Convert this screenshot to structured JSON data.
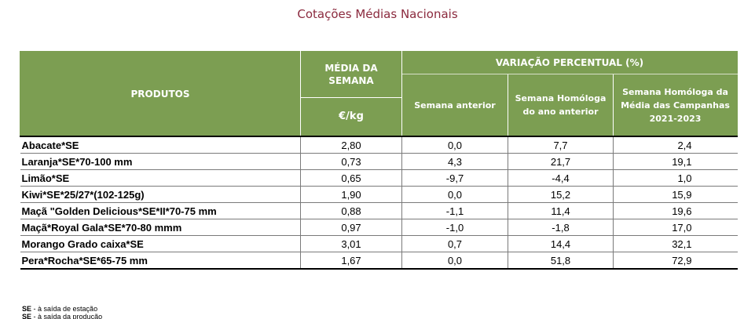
{
  "title": "Cotações Médias Nacionais",
  "table": {
    "header": {
      "produtos": "PRODUTOS",
      "media_semana": "MÉDIA DA SEMANA",
      "unit": "€/kg",
      "variacao": "VARIAÇÃO PERCENTUAL (%)",
      "semana_anterior": "Semana anterior",
      "semana_homologa": "Semana Homóloga do ano anterior",
      "semana_homologa_media": "Semana Homóloga da Média das Campanhas 2021-2023"
    },
    "rows": [
      {
        "produto": "Abacate*SE",
        "media": "2,80",
        "var_anterior": "0,0",
        "var_homologa": "7,7",
        "var_media": "2,4"
      },
      {
        "produto": "Laranja*SE*70-100 mm",
        "media": "0,73",
        "var_anterior": "4,3",
        "var_homologa": "21,7",
        "var_media": "19,1"
      },
      {
        "produto": "Limão*SE",
        "media": "0,65",
        "var_anterior": "-9,7",
        "var_homologa": "-4,4",
        "var_media": "1,0"
      },
      {
        "produto": "Kiwi*SE*25/27*(102-125g)",
        "media": "1,90",
        "var_anterior": "0,0",
        "var_homologa": "15,2",
        "var_media": "15,9"
      },
      {
        "produto": "Maçã \"Golden Delicious*SE*II*70-75 mm",
        "media": "0,88",
        "var_anterior": "-1,1",
        "var_homologa": "11,4",
        "var_media": "19,6"
      },
      {
        "produto": "Maçã*Royal Gala*SE*70-80 mmm",
        "media": "0,97",
        "var_anterior": "-1,0",
        "var_homologa": "-1,8",
        "var_media": "17,0"
      },
      {
        "produto": "Morango Grado caixa*SE",
        "media": "3,01",
        "var_anterior": "0,7",
        "var_homologa": "14,4",
        "var_media": "32,1"
      },
      {
        "produto": "Pera*Rocha*SE*65-75 mm",
        "media": "1,67",
        "var_anterior": "0,0",
        "var_homologa": "51,8",
        "var_media": "72,9"
      }
    ]
  },
  "footnotes": [
    {
      "abbr": "SE",
      "text": " - à saída de estação"
    },
    {
      "abbr": "SE",
      "text": " - à saída da produção"
    }
  ]
}
